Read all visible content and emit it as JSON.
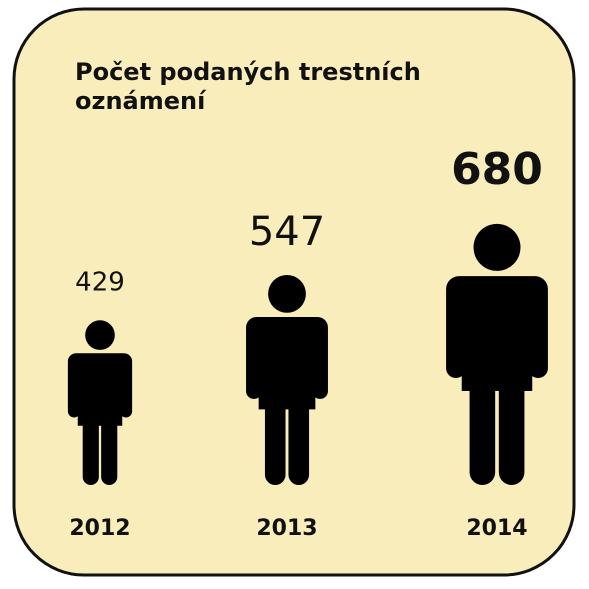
{
  "chart_data": {
    "type": "pictogram",
    "title": "Počet podaných trestních oznámení",
    "categories": [
      "2012",
      "2013",
      "2014"
    ],
    "values": [
      429,
      547,
      680
    ],
    "color": "#000000",
    "background": "#f9edbb"
  }
}
